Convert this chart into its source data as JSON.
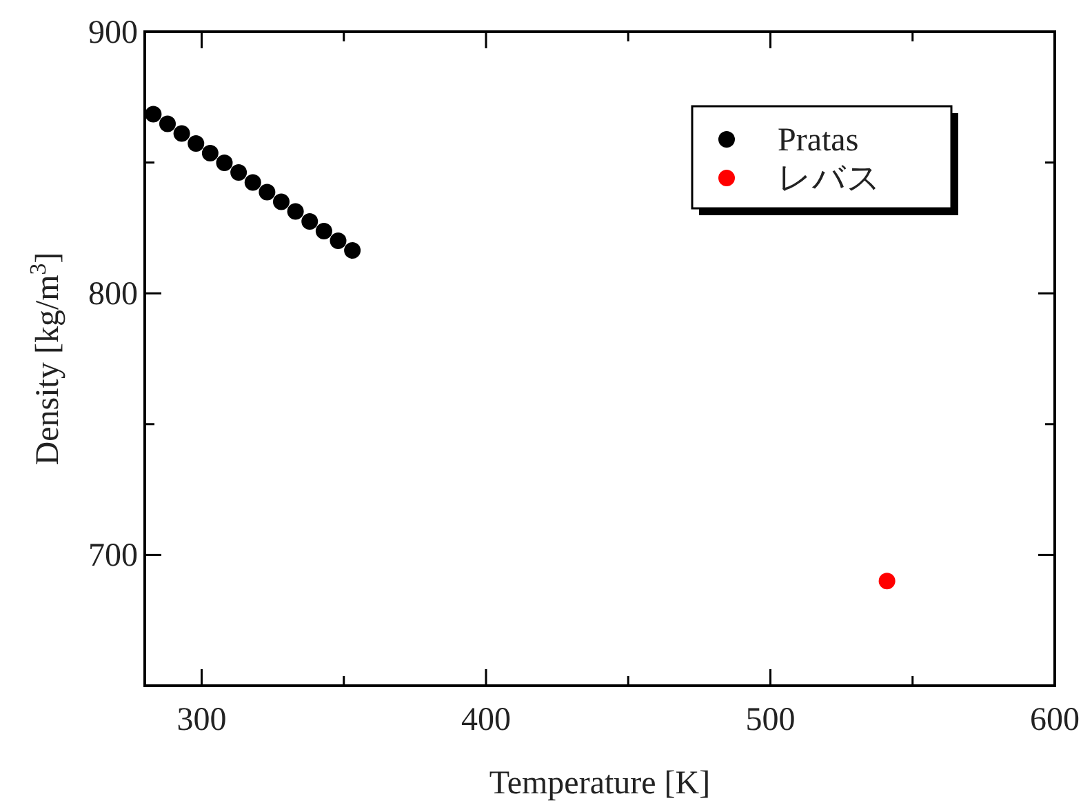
{
  "chart_data": {
    "type": "scatter",
    "xlabel": "Temperature [K]",
    "ylabel": "Density [kg/m$^{3}$]",
    "xlim": [
      280,
      600
    ],
    "ylim": [
      650,
      900
    ],
    "xticks": [
      300,
      {
        "value": 350,
        "label": null
      },
      400,
      {
        "value": 450,
        "label": null
      },
      500,
      {
        "value": 550,
        "label": null
      },
      600
    ],
    "yticks": [
      700,
      {
        "value": 750,
        "label": null
      },
      800,
      {
        "value": 850,
        "label": null
      },
      900
    ],
    "grid": false,
    "legend": "top right",
    "marker": "circle",
    "series": [
      {
        "name": "Pratas",
        "color": "#000000",
        "x": [
          283,
          288,
          293,
          298,
          303,
          308,
          313,
          318,
          323,
          328,
          333,
          338,
          343,
          348,
          353
        ],
        "values": [
          868.5,
          864.8,
          861.1,
          857.3,
          853.6,
          849.9,
          846.2,
          842.4,
          838.7,
          835.0,
          831.3,
          827.5,
          823.8,
          820.1,
          816.4
        ]
      },
      {
        "name": "レバス",
        "color": "#ff0000",
        "x": [
          541
        ],
        "values": [
          690
        ]
      }
    ]
  }
}
